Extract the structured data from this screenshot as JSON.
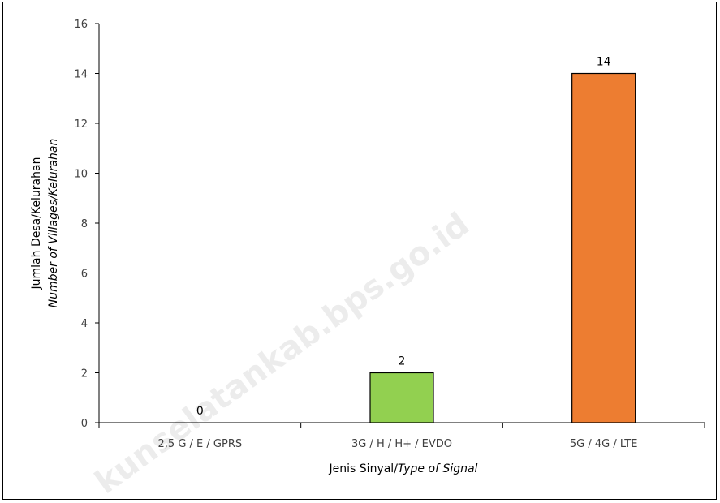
{
  "chart_data": {
    "type": "bar",
    "categories": [
      "2,5 G / E / GPRS",
      "3G / H / H+ / EVDO",
      "5G / 4G / LTE"
    ],
    "values": [
      0,
      2,
      14
    ],
    "data_labels": [
      "0",
      "2",
      "14"
    ],
    "bar_colors": [
      "#ffffff",
      "#92d050",
      "#ed7d31"
    ],
    "bar_border_color": "#000000",
    "ylim": [
      0,
      16
    ],
    "yticks": [
      0,
      2,
      4,
      6,
      8,
      10,
      12,
      14,
      16
    ],
    "grid": false,
    "legend": "none",
    "xlabel": {
      "normal": "Jenis Sinyal/",
      "italic": "Type of Signal"
    },
    "ylabel": {
      "line1": "Jumlah Desa/Kelurahan",
      "line2_italic": "Number of Villages/Kelurahan"
    }
  },
  "watermark": "kunselatankab.bps.go.id"
}
